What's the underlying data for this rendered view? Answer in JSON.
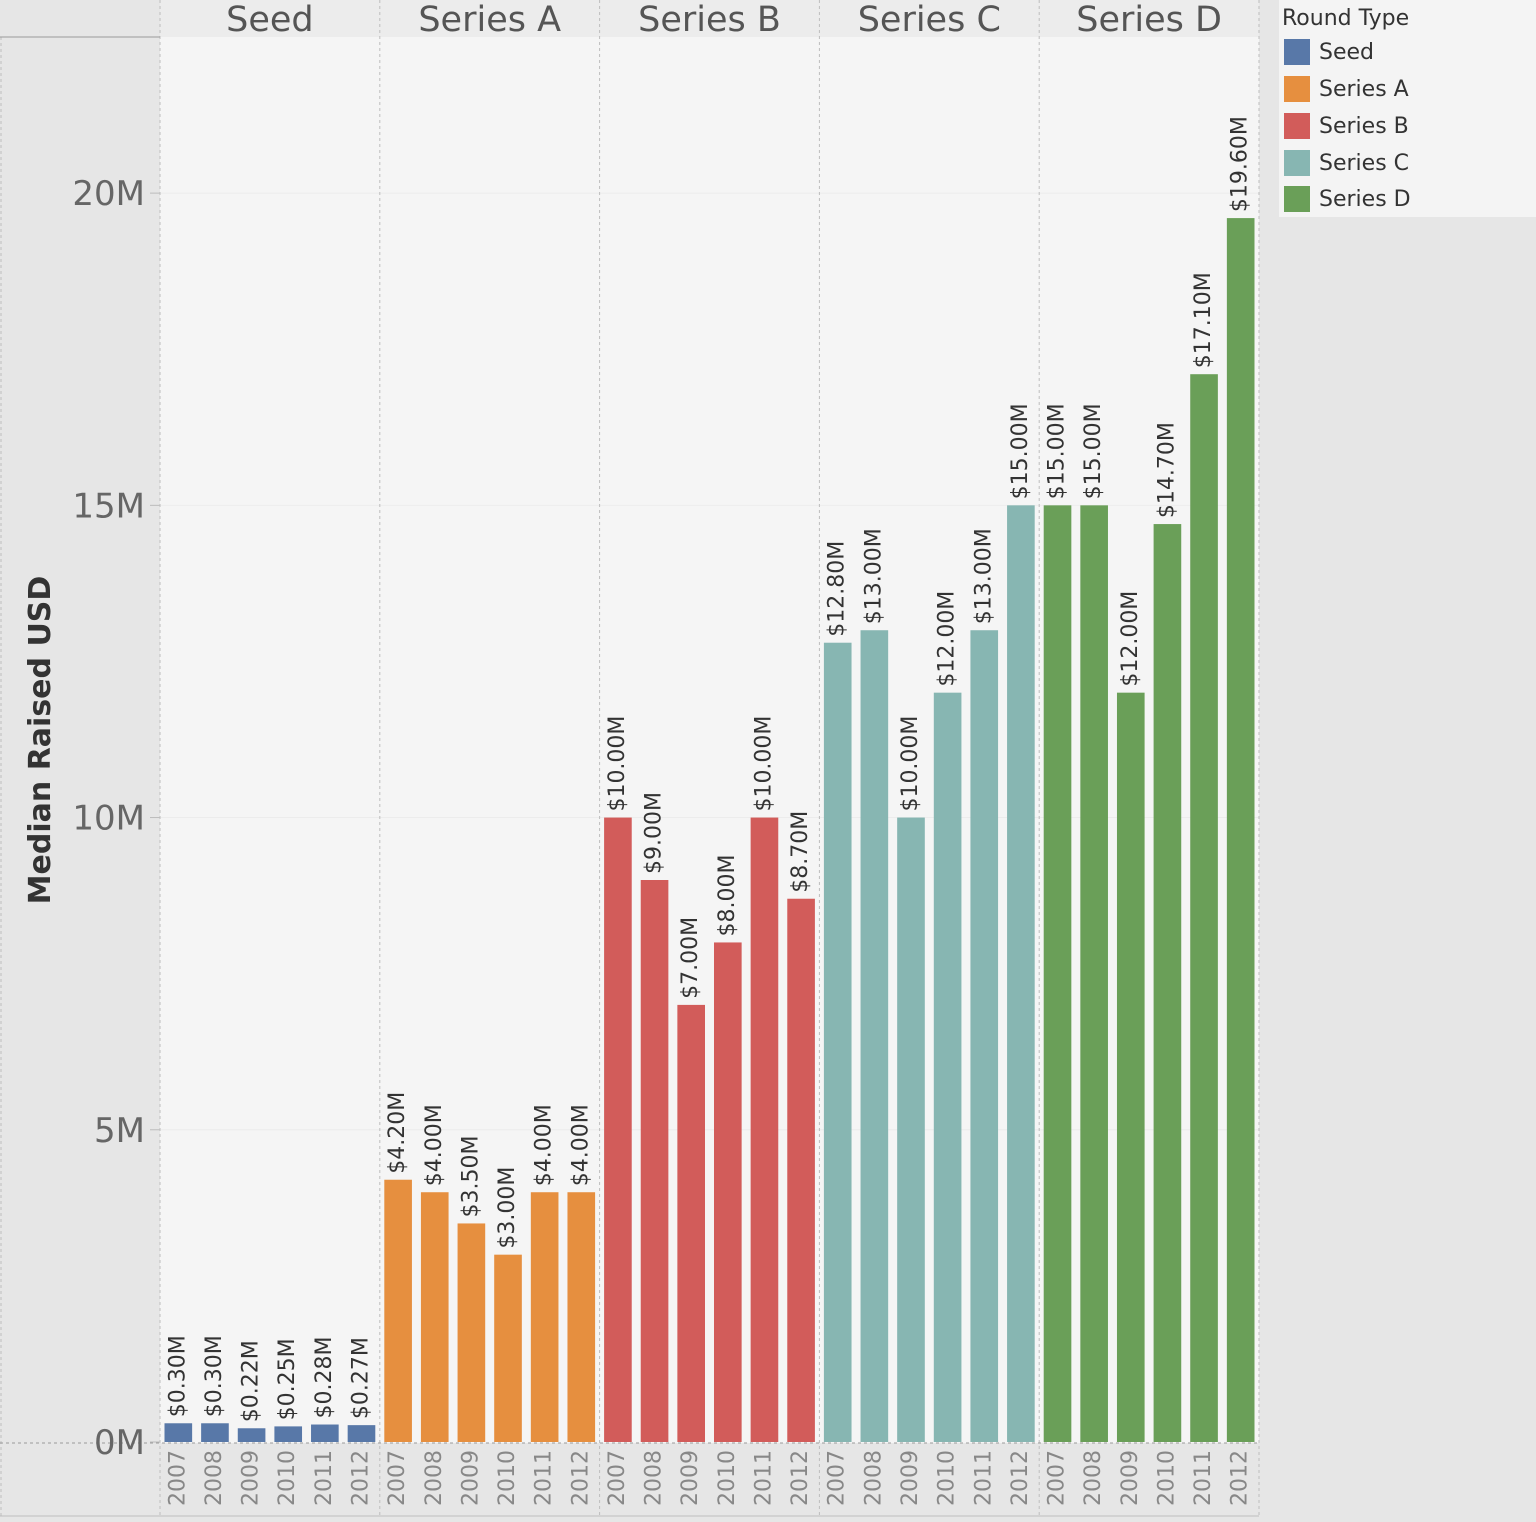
{
  "chart_data": {
    "type": "bar",
    "title": "",
    "ylabel": "Median Raised USD",
    "xlabel": "",
    "ylim": [
      0,
      22500000
    ],
    "y_ticks": [
      {
        "value": 0,
        "label": "0M"
      },
      {
        "value": 5000000,
        "label": "5M"
      },
      {
        "value": 10000000,
        "label": "10M"
      },
      {
        "value": 15000000,
        "label": "15M"
      },
      {
        "value": 20000000,
        "label": "20M"
      }
    ],
    "grid": "horizontal",
    "legend_position": "right",
    "legend_title": "Round Type",
    "years": [
      "2007",
      "2008",
      "2009",
      "2010",
      "2011",
      "2012"
    ],
    "panels": [
      {
        "name": "Seed",
        "color": "#5878a8",
        "values": [
          300000,
          300000,
          220000,
          250000,
          280000,
          270000
        ],
        "labels": [
          "$0.30M",
          "$0.30M",
          "$0.22M",
          "$0.25M",
          "$0.28M",
          "$0.27M"
        ]
      },
      {
        "name": "Series A",
        "color": "#e68f3f",
        "values": [
          4200000,
          4000000,
          3500000,
          3000000,
          4000000,
          4000000
        ],
        "labels": [
          "$4.20M",
          "$4.00M",
          "$3.50M",
          "$3.00M",
          "$4.00M",
          "$4.00M"
        ]
      },
      {
        "name": "Series B",
        "color": "#d25c5a",
        "values": [
          10000000,
          9000000,
          7000000,
          8000000,
          10000000,
          8700000
        ],
        "labels": [
          "$10.00M",
          "$9.00M",
          "$7.00M",
          "$8.00M",
          "$10.00M",
          "$8.70M"
        ]
      },
      {
        "name": "Series C",
        "color": "#87b6b2",
        "values": [
          12800000,
          13000000,
          10000000,
          12000000,
          13000000,
          15000000
        ],
        "labels": [
          "$12.80M",
          "$13.00M",
          "$10.00M",
          "$12.00M",
          "$13.00M",
          "$15.00M"
        ]
      },
      {
        "name": "Series D",
        "color": "#6a9f58",
        "values": [
          15000000,
          15000000,
          12000000,
          14700000,
          17100000,
          19600000
        ],
        "labels": [
          "$15.00M",
          "$15.00M",
          "$12.00M",
          "$14.70M",
          "$17.10M",
          "$19.60M"
        ]
      }
    ]
  }
}
